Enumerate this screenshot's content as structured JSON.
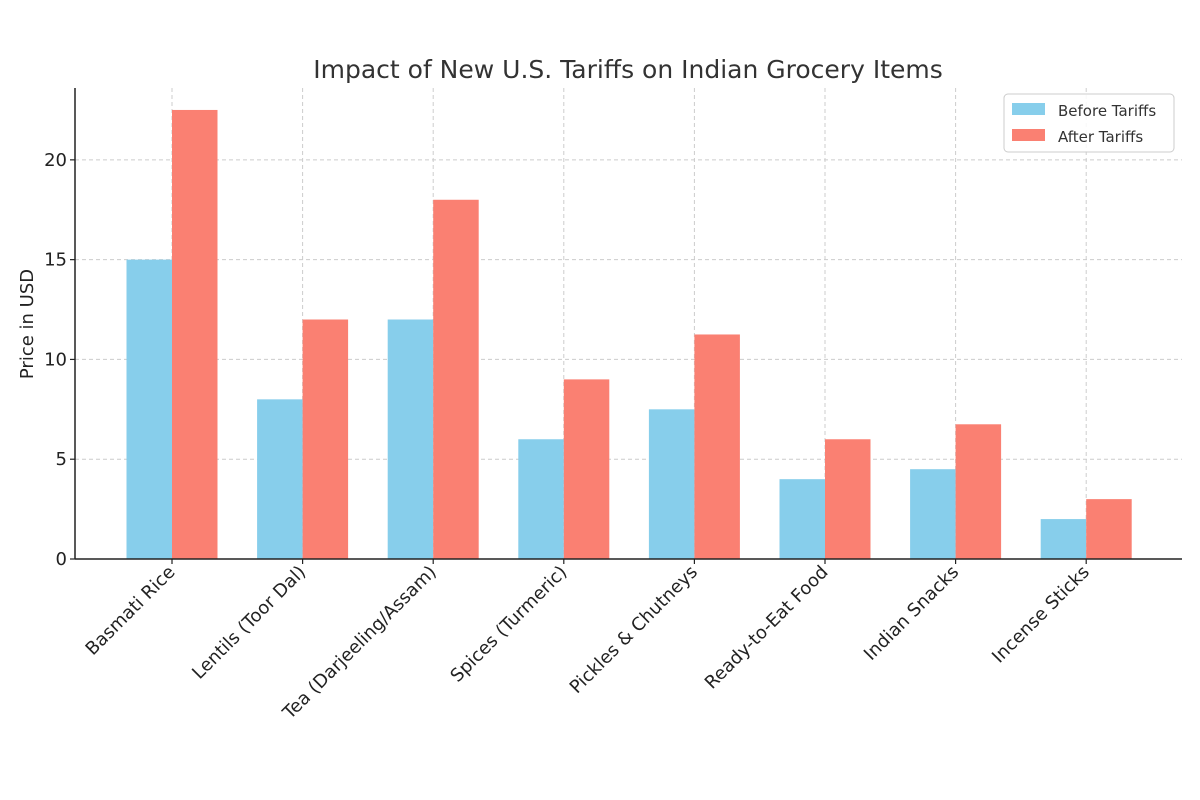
{
  "chart_data": {
    "type": "bar",
    "title": "Impact of New U.S. Tariffs on Indian Grocery Items",
    "xlabel": "",
    "ylabel": "Price in USD",
    "ylim": [
      0,
      23.6
    ],
    "yticks": [
      0,
      5,
      10,
      15,
      20
    ],
    "grid": true,
    "legend_position": "top-right",
    "categories": [
      "Basmati Rice",
      "Lentils (Toor Dal)",
      "Tea (Darjeeling/Assam)",
      "Spices (Turmeric)",
      "Pickles & Chutneys",
      "Ready-to-Eat Food",
      "Indian Snacks",
      "Incense Sticks"
    ],
    "series": [
      {
        "name": "Before Tariffs",
        "color": "#87ceeb",
        "values": [
          15,
          8,
          12,
          6,
          7.5,
          4,
          4.5,
          2
        ]
      },
      {
        "name": "After Tariffs",
        "color": "#fa8072",
        "values": [
          22.5,
          12,
          18,
          9,
          11.25,
          6,
          6.75,
          3
        ]
      }
    ]
  }
}
